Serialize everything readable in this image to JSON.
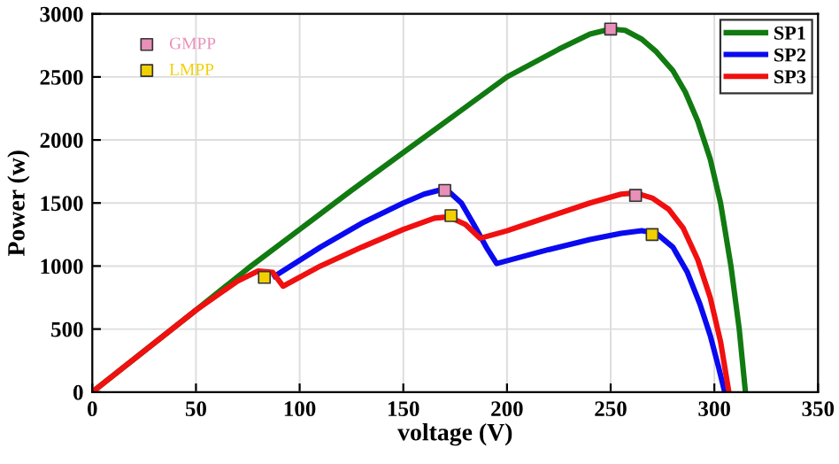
{
  "chart_data": {
    "type": "line",
    "xlabel": "voltage (V)",
    "ylabel": "Power (w)",
    "xlim": [
      0,
      350
    ],
    "ylim": [
      0,
      3000
    ],
    "xticks": [
      0,
      50,
      100,
      150,
      200,
      250,
      300,
      350
    ],
    "yticks": [
      0,
      500,
      1000,
      1500,
      2000,
      2500,
      3000
    ],
    "grid": true,
    "legend": "top right",
    "marker": "none",
    "series": [
      {
        "name": "SP1",
        "color": "#117a11",
        "x": [
          0,
          50,
          75,
          100,
          125,
          150,
          175,
          200,
          225,
          240,
          250,
          257,
          265,
          272,
          280,
          286,
          292,
          298,
          303,
          308,
          312,
          315
        ],
        "values": [
          0,
          650,
          980,
          1290,
          1600,
          1900,
          2200,
          2500,
          2720,
          2840,
          2880,
          2870,
          2800,
          2700,
          2550,
          2380,
          2150,
          1850,
          1500,
          1000,
          500,
          0
        ]
      },
      {
        "name": "SP2",
        "color": "#0a0af0",
        "x": [
          88,
          110,
          130,
          150,
          160,
          167,
          172,
          178,
          184,
          190,
          195,
          220,
          240,
          255,
          265,
          272,
          280,
          287,
          293,
          298,
          302,
          305
        ],
        "values": [
          920,
          1150,
          1340,
          1500,
          1570,
          1600,
          1590,
          1500,
          1330,
          1150,
          1020,
          1130,
          1210,
          1260,
          1280,
          1260,
          1150,
          950,
          700,
          450,
          200,
          0
        ]
      },
      {
        "name": "SP3",
        "color": "#f01010",
        "x": [
          0,
          50,
          70,
          80,
          87,
          92,
          110,
          130,
          150,
          165,
          172,
          180,
          187,
          200,
          220,
          240,
          255,
          262,
          270,
          278,
          285,
          292,
          298,
          303,
          307
        ],
        "values": [
          0,
          650,
          880,
          960,
          950,
          840,
          1000,
          1150,
          1290,
          1380,
          1390,
          1330,
          1220,
          1280,
          1390,
          1500,
          1570,
          1580,
          1540,
          1450,
          1300,
          1050,
          750,
          400,
          0
        ]
      },
      {
        "name": "GMPP",
        "type": "scatter",
        "marker": "square",
        "color": "#e890b8",
        "x": [
          250,
          170,
          262
        ],
        "values": [
          2880,
          1600,
          1560
        ]
      },
      {
        "name": "LMPP",
        "type": "scatter",
        "marker": "square",
        "color": "#f2d000",
        "x": [
          83,
          173,
          270
        ],
        "values": [
          910,
          1400,
          1250
        ]
      }
    ]
  }
}
